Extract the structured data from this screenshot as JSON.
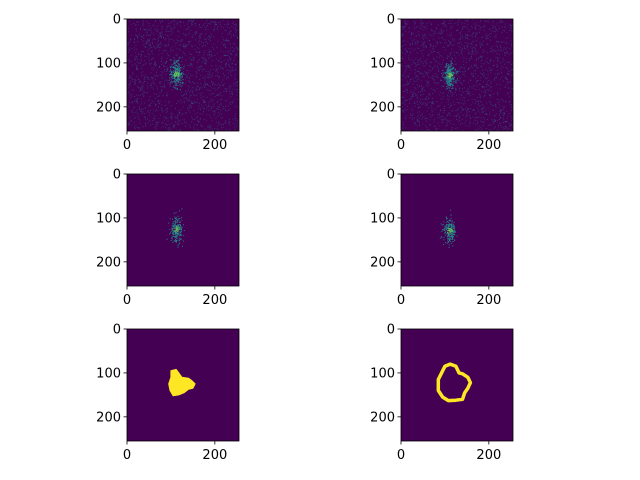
{
  "figure": {
    "background": "#ffffff",
    "colormap": "viridis",
    "colors": {
      "background_dark": "#440154",
      "noise_mid": "#3b528b",
      "signal": "#21918c",
      "signal_bright": "#5ec962",
      "mask": "#fde725"
    }
  },
  "chart_data": [
    {
      "id": "raw-left",
      "type": "heatmap",
      "content": "noisy",
      "title": "",
      "xlabel": "",
      "ylabel": "",
      "xlim": [
        0,
        255
      ],
      "ylim": [
        255,
        0
      ],
      "xticks": [
        {
          "value": 0,
          "label": "0"
        },
        {
          "value": 200,
          "label": "200"
        }
      ],
      "yticks": [
        {
          "value": 0,
          "label": "0"
        },
        {
          "value": 100,
          "label": "100"
        },
        {
          "value": 200,
          "label": "200"
        }
      ],
      "blob_center": [
        112,
        125
      ]
    },
    {
      "id": "raw-right",
      "type": "heatmap",
      "content": "noisy",
      "title": "",
      "xlabel": "",
      "ylabel": "",
      "xlim": [
        0,
        255
      ],
      "ylim": [
        255,
        0
      ],
      "xticks": [
        {
          "value": 0,
          "label": "0"
        },
        {
          "value": 200,
          "label": "200"
        }
      ],
      "yticks": [
        {
          "value": 0,
          "label": "0"
        },
        {
          "value": 100,
          "label": "100"
        },
        {
          "value": 200,
          "label": "200"
        }
      ],
      "blob_center": [
        110,
        128
      ]
    },
    {
      "id": "filtered-left",
      "type": "heatmap",
      "content": "clean",
      "title": "",
      "xlabel": "",
      "ylabel": "",
      "xlim": [
        0,
        255
      ],
      "ylim": [
        255,
        0
      ],
      "xticks": [
        {
          "value": 0,
          "label": "0"
        },
        {
          "value": 200,
          "label": "200"
        }
      ],
      "yticks": [
        {
          "value": 0,
          "label": "0"
        },
        {
          "value": 100,
          "label": "100"
        },
        {
          "value": 200,
          "label": "200"
        }
      ],
      "blob_center": [
        112,
        125
      ]
    },
    {
      "id": "filtered-right",
      "type": "heatmap",
      "content": "clean",
      "title": "",
      "xlabel": "",
      "ylabel": "",
      "xlim": [
        0,
        255
      ],
      "ylim": [
        255,
        0
      ],
      "xticks": [
        {
          "value": 0,
          "label": "0"
        },
        {
          "value": 200,
          "label": "200"
        }
      ],
      "yticks": [
        {
          "value": 0,
          "label": "0"
        },
        {
          "value": 100,
          "label": "100"
        },
        {
          "value": 200,
          "label": "200"
        }
      ],
      "blob_center": [
        110,
        128
      ]
    },
    {
      "id": "mask-filled",
      "type": "heatmap",
      "content": "filled-mask",
      "title": "",
      "xlabel": "",
      "ylabel": "",
      "xlim": [
        0,
        255
      ],
      "ylim": [
        255,
        0
      ],
      "xticks": [
        {
          "value": 0,
          "label": "0"
        },
        {
          "value": 200,
          "label": "200"
        }
      ],
      "yticks": [
        {
          "value": 0,
          "label": "0"
        },
        {
          "value": 100,
          "label": "100"
        },
        {
          "value": 200,
          "label": "200"
        }
      ],
      "region": [
        [
          100,
          95
        ],
        [
          112,
          92
        ],
        [
          118,
          100
        ],
        [
          125,
          110
        ],
        [
          140,
          112
        ],
        [
          148,
          118
        ],
        [
          155,
          125
        ],
        [
          150,
          135
        ],
        [
          140,
          137
        ],
        [
          130,
          145
        ],
        [
          118,
          150
        ],
        [
          105,
          152
        ],
        [
          98,
          140
        ],
        [
          95,
          125
        ],
        [
          100,
          110
        ]
      ]
    },
    {
      "id": "mask-outline",
      "type": "heatmap",
      "content": "outline-mask",
      "title": "",
      "xlabel": "",
      "ylabel": "",
      "xlim": [
        0,
        255
      ],
      "ylim": [
        255,
        0
      ],
      "xticks": [
        {
          "value": 0,
          "label": "0"
        },
        {
          "value": 200,
          "label": "200"
        }
      ],
      "yticks": [
        {
          "value": 0,
          "label": "0"
        },
        {
          "value": 100,
          "label": "100"
        },
        {
          "value": 200,
          "label": "200"
        }
      ],
      "region": [
        [
          95,
          95
        ],
        [
          100,
          85
        ],
        [
          112,
          80
        ],
        [
          125,
          85
        ],
        [
          132,
          100
        ],
        [
          140,
          102
        ],
        [
          152,
          110
        ],
        [
          158,
          122
        ],
        [
          152,
          135
        ],
        [
          145,
          145
        ],
        [
          140,
          160
        ],
        [
          125,
          162
        ],
        [
          108,
          163
        ],
        [
          95,
          155
        ],
        [
          85,
          140
        ],
        [
          85,
          115
        ]
      ]
    }
  ]
}
